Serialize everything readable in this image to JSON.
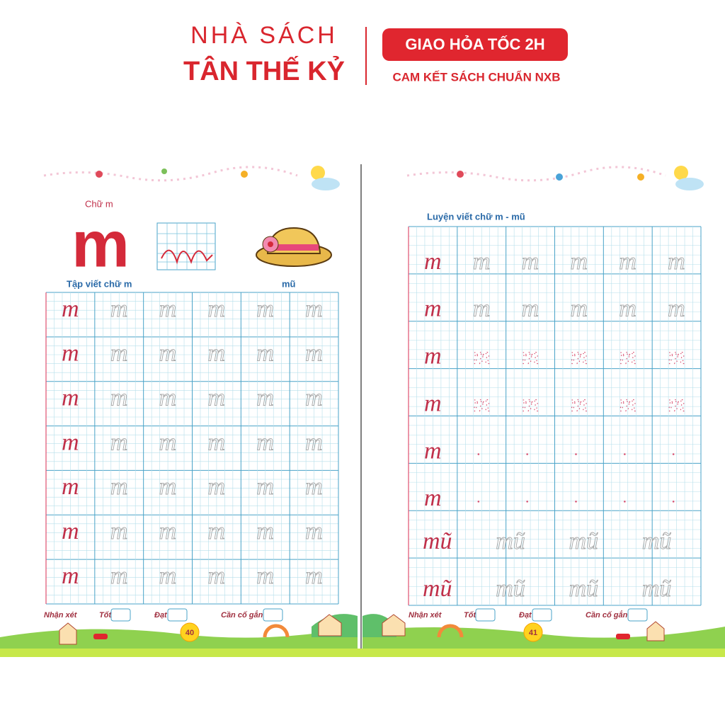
{
  "header": {
    "brand_top": "NHÀ SÁCH",
    "brand_bottom": "TÂN THẾ KỶ",
    "badge": "GIAO HỎA TỐC 2H",
    "promise": "CAM KẾT SÁCH CHUẨN NXB"
  },
  "left_page": {
    "heading": "Chữ m",
    "big_letter": "m",
    "exercise_title": "Tập viết chữ m",
    "word": "mũ",
    "model": "m",
    "footer": {
      "comment": "Nhận xét",
      "good": "Tốt",
      "pass": "Đạt",
      "try_harder": "Cần cố gắng",
      "page_number": "40"
    }
  },
  "right_page": {
    "exercise_title": "Luyện viết chữ m - mũ",
    "model_letter": "m",
    "model_word": "mũ",
    "footer": {
      "comment": "Nhận xét",
      "good": "Tốt",
      "pass": "Đạt",
      "try_harder": "Cần cố gắng",
      "page_number": "41"
    }
  }
}
